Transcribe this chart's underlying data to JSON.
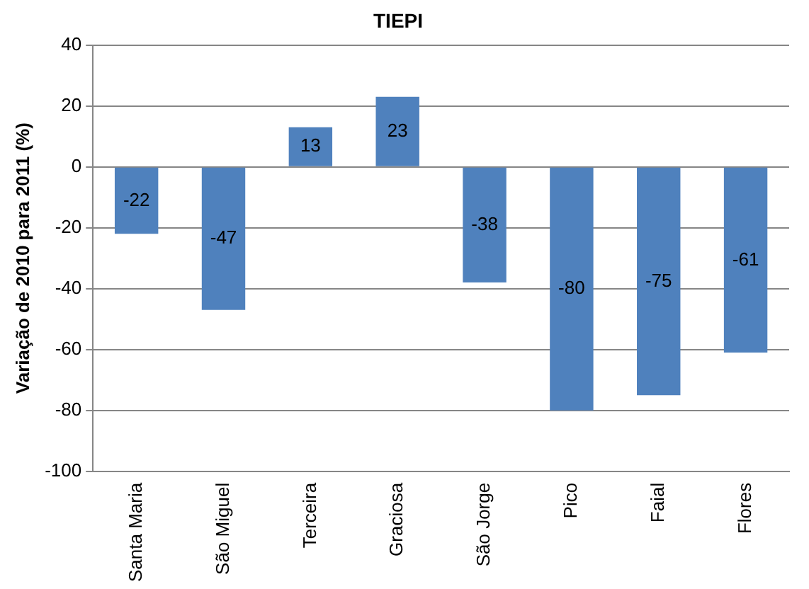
{
  "chart_data": {
    "type": "bar",
    "title": "TIEPI",
    "ylabel": "Variação de 2010 para 2011 (%)",
    "categories": [
      "Santa Maria",
      "São Miguel",
      "Terceira",
      "Graciosa",
      "São Jorge",
      "Pico",
      "Faial",
      "Flores"
    ],
    "values": [
      -22,
      -47,
      13,
      23,
      -38,
      -80,
      -75,
      -61
    ],
    "color": "#4f81bd",
    "ylim": [
      -100,
      40
    ],
    "yticks": [
      -100,
      -80,
      -60,
      -40,
      -20,
      0,
      20,
      40
    ],
    "grid": "y",
    "data_labels": true,
    "legend": false
  }
}
